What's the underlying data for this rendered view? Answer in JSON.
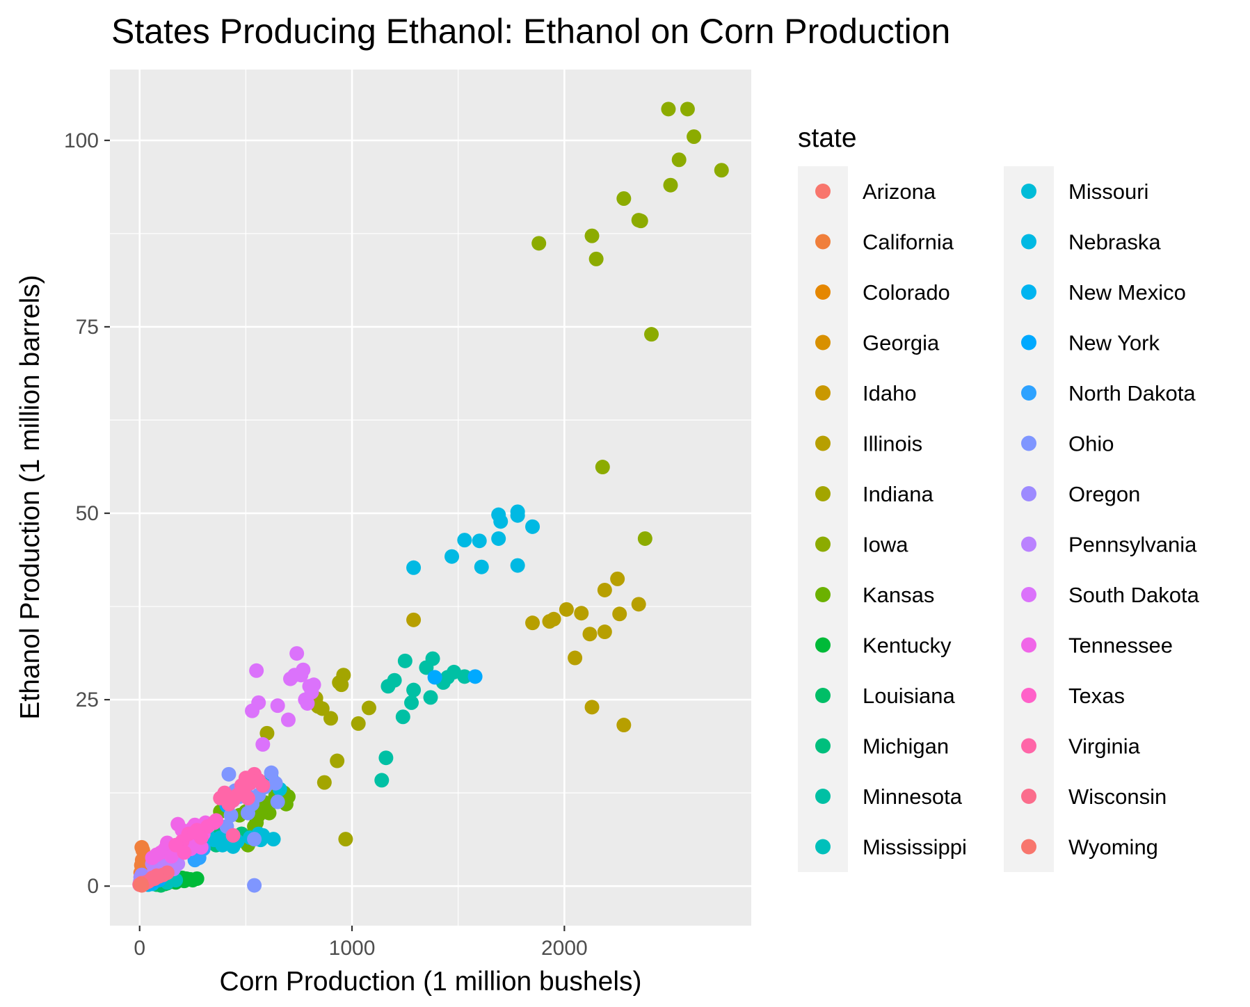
{
  "chart_data": {
    "type": "scatter",
    "title": "States Producing Ethanol: Ethanol on Corn Production",
    "xlabel": "Corn Production (1 million bushels)",
    "ylabel": "Ethanol Production (1 million barrels)",
    "xlim": [
      -140,
      2880
    ],
    "ylim": [
      -5.3,
      109.5
    ],
    "x_ticks": [
      0,
      1000,
      2000
    ],
    "y_ticks": [
      0,
      25,
      50,
      75,
      100
    ],
    "x_tick_labels": [
      "0",
      "1000",
      "2000"
    ],
    "y_tick_labels": [
      "0",
      "25",
      "50",
      "75",
      "100"
    ],
    "grid": true,
    "legend": {
      "title": "state",
      "position": "right",
      "columns": 2
    },
    "series": [
      {
        "name": "Arizona",
        "color": "#F8766D",
        "points": [
          [
            5,
            1.2
          ],
          [
            8,
            1.5
          ],
          [
            10,
            1.3
          ]
        ]
      },
      {
        "name": "California",
        "color": "#F07F3B",
        "points": [
          [
            10,
            5.2
          ],
          [
            15,
            4.8
          ],
          [
            12,
            3.5
          ],
          [
            8,
            2.8
          ],
          [
            5,
            1.8
          ]
        ]
      },
      {
        "name": "Colorado",
        "color": "#E58700",
        "points": [
          [
            120,
            3.0
          ],
          [
            140,
            2.5
          ],
          [
            150,
            3.5
          ],
          [
            130,
            2.2
          ]
        ]
      },
      {
        "name": "Georgia",
        "color": "#D89000",
        "points": [
          [
            30,
            0.5
          ],
          [
            40,
            0.8
          ],
          [
            50,
            0.6
          ]
        ]
      },
      {
        "name": "Idaho",
        "color": "#C99800",
        "points": [
          [
            5,
            0.3
          ],
          [
            8,
            0.4
          ]
        ]
      },
      {
        "name": "Illinois",
        "color": "#B79F00",
        "points": [
          [
            1850,
            35.3
          ],
          [
            1930,
            35.5
          ],
          [
            1950,
            35.8
          ],
          [
            2010,
            37.1
          ],
          [
            2080,
            36.6
          ],
          [
            2120,
            33.8
          ],
          [
            2130,
            24.0
          ],
          [
            2050,
            30.6
          ],
          [
            2190,
            39.7
          ],
          [
            2190,
            34.1
          ],
          [
            2250,
            41.2
          ],
          [
            2260,
            36.5
          ],
          [
            2280,
            21.6
          ],
          [
            2350,
            37.8
          ],
          [
            1290,
            35.7
          ]
        ]
      },
      {
        "name": "Indiana",
        "color": "#A3A500",
        "points": [
          [
            830,
            25.2
          ],
          [
            840,
            24.1
          ],
          [
            860,
            23.8
          ],
          [
            900,
            22.5
          ],
          [
            870,
            13.9
          ],
          [
            930,
            16.8
          ],
          [
            940,
            27.3
          ],
          [
            960,
            28.3
          ],
          [
            950,
            27.0
          ],
          [
            1030,
            21.8
          ],
          [
            1080,
            23.9
          ],
          [
            970,
            6.3
          ],
          [
            600,
            20.5
          ]
        ]
      },
      {
        "name": "Iowa",
        "color": "#8CAB00",
        "points": [
          [
            2490,
            104.2
          ],
          [
            2580,
            104.2
          ],
          [
            2610,
            100.5
          ],
          [
            2540,
            97.4
          ],
          [
            2500,
            94.0
          ],
          [
            2740,
            96.0
          ],
          [
            2280,
            92.2
          ],
          [
            2350,
            89.3
          ],
          [
            2360,
            89.2
          ],
          [
            1880,
            86.2
          ],
          [
            2130,
            87.2
          ],
          [
            2150,
            84.1
          ],
          [
            2410,
            74.0
          ],
          [
            2180,
            56.2
          ],
          [
            2380,
            46.6
          ]
        ]
      },
      {
        "name": "Kansas",
        "color": "#6BB100",
        "points": [
          [
            500,
            10.0
          ],
          [
            510,
            5.5
          ],
          [
            530,
            6.8
          ],
          [
            550,
            8.5
          ],
          [
            570,
            11.0
          ],
          [
            600,
            10.2
          ],
          [
            640,
            12.1
          ],
          [
            680,
            12.5
          ],
          [
            700,
            12.0
          ],
          [
            560,
            9.5
          ],
          [
            520,
            11.5
          ],
          [
            610,
            9.8
          ],
          [
            580,
            10.5
          ],
          [
            470,
            9.5
          ],
          [
            650,
            11.8
          ],
          [
            690,
            11.0
          ],
          [
            380,
            10.0
          ],
          [
            480,
            7.0
          ],
          [
            540,
            8.0
          ],
          [
            590,
            11.2
          ]
        ]
      },
      {
        "name": "Kentucky",
        "color": "#00BA38",
        "points": [
          [
            190,
            0.8
          ],
          [
            210,
            0.7
          ],
          [
            230,
            0.9
          ],
          [
            250,
            0.8
          ],
          [
            270,
            1.0
          ],
          [
            100,
            0.5
          ],
          [
            120,
            0.3
          ],
          [
            150,
            0.6
          ],
          [
            170,
            0.5
          ],
          [
            220,
            1.0
          ],
          [
            240,
            0.9
          ],
          [
            200,
            1.1
          ]
        ]
      },
      {
        "name": "Louisiana",
        "color": "#00BE67",
        "points": [
          [
            80,
            0.2
          ],
          [
            100,
            0.1
          ],
          [
            110,
            0.3
          ],
          [
            130,
            0.4
          ]
        ]
      },
      {
        "name": "Michigan",
        "color": "#00BF7D",
        "points": [
          [
            300,
            6.5
          ],
          [
            320,
            5.8
          ],
          [
            340,
            6.0
          ],
          [
            360,
            5.5
          ],
          [
            380,
            7.0
          ],
          [
            400,
            6.2
          ],
          [
            420,
            6.8
          ],
          [
            440,
            5.9
          ],
          [
            460,
            6.5
          ],
          [
            480,
            7.0
          ],
          [
            250,
            5.0
          ]
        ]
      },
      {
        "name": "Minnesota",
        "color": "#00C0A4",
        "points": [
          [
            1140,
            14.2
          ],
          [
            1160,
            17.2
          ],
          [
            1170,
            26.8
          ],
          [
            1200,
            27.6
          ],
          [
            1240,
            22.7
          ],
          [
            1250,
            30.2
          ],
          [
            1280,
            24.6
          ],
          [
            1290,
            26.3
          ],
          [
            1350,
            29.3
          ],
          [
            1380,
            30.5
          ],
          [
            1370,
            25.3
          ],
          [
            1430,
            27.3
          ],
          [
            1450,
            28.0
          ],
          [
            1480,
            28.7
          ],
          [
            1530,
            28.1
          ]
        ]
      },
      {
        "name": "Mississippi",
        "color": "#00C0BB",
        "points": [
          [
            150,
            1.0
          ],
          [
            170,
            0.8
          ],
          [
            130,
            0.5
          ]
        ]
      },
      {
        "name": "Missouri",
        "color": "#00BCD8",
        "points": [
          [
            350,
            6.2
          ],
          [
            380,
            6.5
          ],
          [
            390,
            5.5
          ],
          [
            430,
            5.8
          ],
          [
            440,
            5.3
          ],
          [
            460,
            6.0
          ],
          [
            520,
            6.5
          ],
          [
            560,
            7.0
          ],
          [
            570,
            6.2
          ],
          [
            580,
            6.8
          ],
          [
            630,
            6.3
          ],
          [
            660,
            13.0
          ],
          [
            620,
            14.5
          ],
          [
            280,
            6.0
          ],
          [
            300,
            5.2
          ],
          [
            320,
            6.8
          ]
        ]
      },
      {
        "name": "Nebraska",
        "color": "#00B9E3",
        "points": [
          [
            1290,
            42.7
          ],
          [
            1470,
            44.2
          ],
          [
            1530,
            46.4
          ],
          [
            1600,
            46.3
          ],
          [
            1610,
            42.8
          ],
          [
            1690,
            49.8
          ],
          [
            1700,
            48.9
          ],
          [
            1690,
            46.6
          ],
          [
            1780,
            50.2
          ],
          [
            1780,
            49.7
          ],
          [
            1780,
            43.0
          ],
          [
            1850,
            48.2
          ]
        ]
      },
      {
        "name": "New Mexico",
        "color": "#00B4F0",
        "points": [
          [
            30,
            0.4
          ],
          [
            40,
            0.2
          ],
          [
            60,
            0.3
          ]
        ]
      },
      {
        "name": "New York",
        "color": "#00A9FF",
        "points": [
          [
            50,
            0.5
          ],
          [
            80,
            1.0
          ],
          [
            90,
            0.8
          ],
          [
            100,
            1.2
          ],
          [
            400,
            11.5
          ],
          [
            410,
            10.8
          ],
          [
            420,
            12.0
          ],
          [
            1390,
            28.0
          ],
          [
            1580,
            28.1
          ]
        ]
      },
      {
        "name": "North Dakota",
        "color": "#2EA2FF",
        "points": [
          [
            260,
            3.5
          ],
          [
            270,
            4.0
          ],
          [
            280,
            3.8
          ],
          [
            300,
            5.0
          ]
        ]
      },
      {
        "name": "Ohio",
        "color": "#7F96FF",
        "points": [
          [
            420,
            15.0
          ],
          [
            450,
            12.8
          ],
          [
            470,
            12.0
          ],
          [
            500,
            12.5
          ],
          [
            510,
            9.8
          ],
          [
            530,
            11.0
          ],
          [
            560,
            12.2
          ],
          [
            590,
            13.3
          ],
          [
            620,
            15.2
          ],
          [
            640,
            13.8
          ],
          [
            650,
            11.3
          ],
          [
            540,
            6.3
          ],
          [
            540,
            0.1
          ],
          [
            410,
            8.0
          ],
          [
            430,
            9.5
          ],
          [
            440,
            11.5
          ]
        ]
      },
      {
        "name": "Oregon",
        "color": "#9D8AFF",
        "points": [
          [
            5,
            1.2
          ],
          [
            8,
            0.8
          ],
          [
            12,
            1.0
          ],
          [
            3,
            0.6
          ],
          [
            10,
            1.5
          ]
        ]
      },
      {
        "name": "Pennsylvania",
        "color": "#BA82FF",
        "points": [
          [
            60,
            3.0
          ],
          [
            80,
            3.5
          ],
          [
            100,
            2.8
          ],
          [
            120,
            3.8
          ],
          [
            140,
            2.5
          ],
          [
            160,
            2.3
          ],
          [
            180,
            3.0
          ],
          [
            70,
            2.2
          ],
          [
            90,
            2.7
          ],
          [
            150,
            3.3
          ]
        ]
      },
      {
        "name": "South Dakota",
        "color": "#DB72FB",
        "points": [
          [
            530,
            23.5
          ],
          [
            550,
            28.9
          ],
          [
            560,
            24.6
          ],
          [
            580,
            19.0
          ],
          [
            650,
            24.2
          ],
          [
            700,
            22.3
          ],
          [
            710,
            27.8
          ],
          [
            730,
            28.3
          ],
          [
            740,
            31.2
          ],
          [
            760,
            28.3
          ],
          [
            770,
            29.0
          ],
          [
            780,
            25.0
          ],
          [
            790,
            24.5
          ],
          [
            800,
            26.8
          ],
          [
            820,
            27.0
          ],
          [
            810,
            26.0
          ]
        ]
      },
      {
        "name": "Tennessee",
        "color": "#F066E8",
        "points": [
          [
            100,
            4.5
          ],
          [
            120,
            5.0
          ],
          [
            130,
            5.8
          ],
          [
            150,
            4.0
          ],
          [
            180,
            8.3
          ],
          [
            200,
            7.5
          ],
          [
            220,
            6.5
          ],
          [
            240,
            5.0
          ],
          [
            250,
            7.8
          ],
          [
            260,
            8.2
          ],
          [
            280,
            6.0
          ],
          [
            290,
            5.2
          ],
          [
            300,
            7.0
          ],
          [
            310,
            8.5
          ],
          [
            60,
            3.8
          ],
          [
            80,
            4.2
          ]
        ]
      },
      {
        "name": "Texas",
        "color": "#FF61C9",
        "points": [
          [
            320,
            8.0
          ],
          [
            350,
            8.5
          ],
          [
            200,
            6.0
          ],
          [
            230,
            7.0
          ],
          [
            270,
            7.5
          ],
          [
            290,
            6.5
          ],
          [
            170,
            5.5
          ],
          [
            210,
            4.5
          ],
          [
            360,
            8.8
          ],
          [
            260,
            7.2
          ]
        ]
      },
      {
        "name": "Virginia",
        "color": "#FF66A8",
        "points": [
          [
            380,
            11.8
          ],
          [
            400,
            12.5
          ],
          [
            420,
            11.0
          ],
          [
            440,
            11.5
          ],
          [
            460,
            12.2
          ],
          [
            480,
            13.5
          ],
          [
            500,
            14.5
          ],
          [
            520,
            13.8
          ],
          [
            540,
            15.0
          ],
          [
            560,
            14.2
          ],
          [
            580,
            13.5
          ],
          [
            440,
            6.8
          ],
          [
            490,
            12.8
          ],
          [
            510,
            11.8
          ]
        ]
      },
      {
        "name": "Wisconsin",
        "color": "#FB6D8C",
        "points": [
          [
            20,
            0.3
          ],
          [
            30,
            0.5
          ],
          [
            50,
            0.8
          ],
          [
            70,
            1.0
          ],
          [
            90,
            1.3
          ],
          [
            110,
            1.5
          ],
          [
            130,
            1.8
          ],
          [
            0,
            0.2
          ],
          [
            10,
            0.4
          ],
          [
            40,
            0.6
          ],
          [
            60,
            1.1
          ],
          [
            80,
            1.4
          ]
        ]
      },
      {
        "name": "Wyoming",
        "color": "#F8766D",
        "points": [
          [
            5,
            0.2
          ],
          [
            8,
            0.3
          ],
          [
            10,
            0.1
          ]
        ]
      }
    ]
  }
}
